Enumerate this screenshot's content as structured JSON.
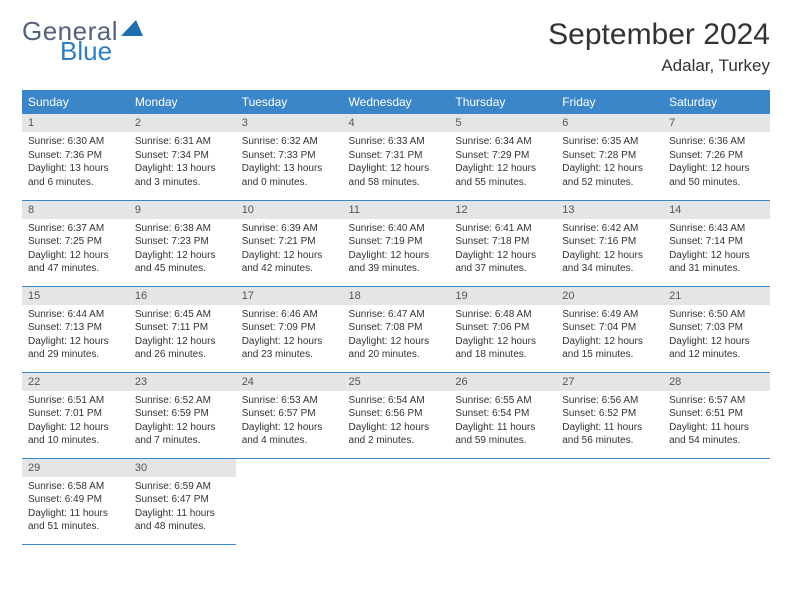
{
  "brand": {
    "word1": "General",
    "word2": "Blue",
    "icon_color": "#1e6fb0"
  },
  "title": "September 2024",
  "location": "Adalar, Turkey",
  "colors": {
    "header_bg": "#3a86c8",
    "header_text": "#ffffff",
    "daynum_bg": "#e4e5e7",
    "row_border": "#3a86c8",
    "body_text": "#333333"
  },
  "day_names": [
    "Sunday",
    "Monday",
    "Tuesday",
    "Wednesday",
    "Thursday",
    "Friday",
    "Saturday"
  ],
  "layout": {
    "first_day_column": 0,
    "days_in_month": 30,
    "weeks": 5
  },
  "days": [
    {
      "n": 1,
      "sunrise": "6:30 AM",
      "sunset": "7:36 PM",
      "daylight": "13 hours and 6 minutes."
    },
    {
      "n": 2,
      "sunrise": "6:31 AM",
      "sunset": "7:34 PM",
      "daylight": "13 hours and 3 minutes."
    },
    {
      "n": 3,
      "sunrise": "6:32 AM",
      "sunset": "7:33 PM",
      "daylight": "13 hours and 0 minutes."
    },
    {
      "n": 4,
      "sunrise": "6:33 AM",
      "sunset": "7:31 PM",
      "daylight": "12 hours and 58 minutes."
    },
    {
      "n": 5,
      "sunrise": "6:34 AM",
      "sunset": "7:29 PM",
      "daylight": "12 hours and 55 minutes."
    },
    {
      "n": 6,
      "sunrise": "6:35 AM",
      "sunset": "7:28 PM",
      "daylight": "12 hours and 52 minutes."
    },
    {
      "n": 7,
      "sunrise": "6:36 AM",
      "sunset": "7:26 PM",
      "daylight": "12 hours and 50 minutes."
    },
    {
      "n": 8,
      "sunrise": "6:37 AM",
      "sunset": "7:25 PM",
      "daylight": "12 hours and 47 minutes."
    },
    {
      "n": 9,
      "sunrise": "6:38 AM",
      "sunset": "7:23 PM",
      "daylight": "12 hours and 45 minutes."
    },
    {
      "n": 10,
      "sunrise": "6:39 AM",
      "sunset": "7:21 PM",
      "daylight": "12 hours and 42 minutes."
    },
    {
      "n": 11,
      "sunrise": "6:40 AM",
      "sunset": "7:19 PM",
      "daylight": "12 hours and 39 minutes."
    },
    {
      "n": 12,
      "sunrise": "6:41 AM",
      "sunset": "7:18 PM",
      "daylight": "12 hours and 37 minutes."
    },
    {
      "n": 13,
      "sunrise": "6:42 AM",
      "sunset": "7:16 PM",
      "daylight": "12 hours and 34 minutes."
    },
    {
      "n": 14,
      "sunrise": "6:43 AM",
      "sunset": "7:14 PM",
      "daylight": "12 hours and 31 minutes."
    },
    {
      "n": 15,
      "sunrise": "6:44 AM",
      "sunset": "7:13 PM",
      "daylight": "12 hours and 29 minutes."
    },
    {
      "n": 16,
      "sunrise": "6:45 AM",
      "sunset": "7:11 PM",
      "daylight": "12 hours and 26 minutes."
    },
    {
      "n": 17,
      "sunrise": "6:46 AM",
      "sunset": "7:09 PM",
      "daylight": "12 hours and 23 minutes."
    },
    {
      "n": 18,
      "sunrise": "6:47 AM",
      "sunset": "7:08 PM",
      "daylight": "12 hours and 20 minutes."
    },
    {
      "n": 19,
      "sunrise": "6:48 AM",
      "sunset": "7:06 PM",
      "daylight": "12 hours and 18 minutes."
    },
    {
      "n": 20,
      "sunrise": "6:49 AM",
      "sunset": "7:04 PM",
      "daylight": "12 hours and 15 minutes."
    },
    {
      "n": 21,
      "sunrise": "6:50 AM",
      "sunset": "7:03 PM",
      "daylight": "12 hours and 12 minutes."
    },
    {
      "n": 22,
      "sunrise": "6:51 AM",
      "sunset": "7:01 PM",
      "daylight": "12 hours and 10 minutes."
    },
    {
      "n": 23,
      "sunrise": "6:52 AM",
      "sunset": "6:59 PM",
      "daylight": "12 hours and 7 minutes."
    },
    {
      "n": 24,
      "sunrise": "6:53 AM",
      "sunset": "6:57 PM",
      "daylight": "12 hours and 4 minutes."
    },
    {
      "n": 25,
      "sunrise": "6:54 AM",
      "sunset": "6:56 PM",
      "daylight": "12 hours and 2 minutes."
    },
    {
      "n": 26,
      "sunrise": "6:55 AM",
      "sunset": "6:54 PM",
      "daylight": "11 hours and 59 minutes."
    },
    {
      "n": 27,
      "sunrise": "6:56 AM",
      "sunset": "6:52 PM",
      "daylight": "11 hours and 56 minutes."
    },
    {
      "n": 28,
      "sunrise": "6:57 AM",
      "sunset": "6:51 PM",
      "daylight": "11 hours and 54 minutes."
    },
    {
      "n": 29,
      "sunrise": "6:58 AM",
      "sunset": "6:49 PM",
      "daylight": "11 hours and 51 minutes."
    },
    {
      "n": 30,
      "sunrise": "6:59 AM",
      "sunset": "6:47 PM",
      "daylight": "11 hours and 48 minutes."
    }
  ],
  "labels": {
    "sunrise": "Sunrise:",
    "sunset": "Sunset:",
    "daylight": "Daylight:"
  }
}
